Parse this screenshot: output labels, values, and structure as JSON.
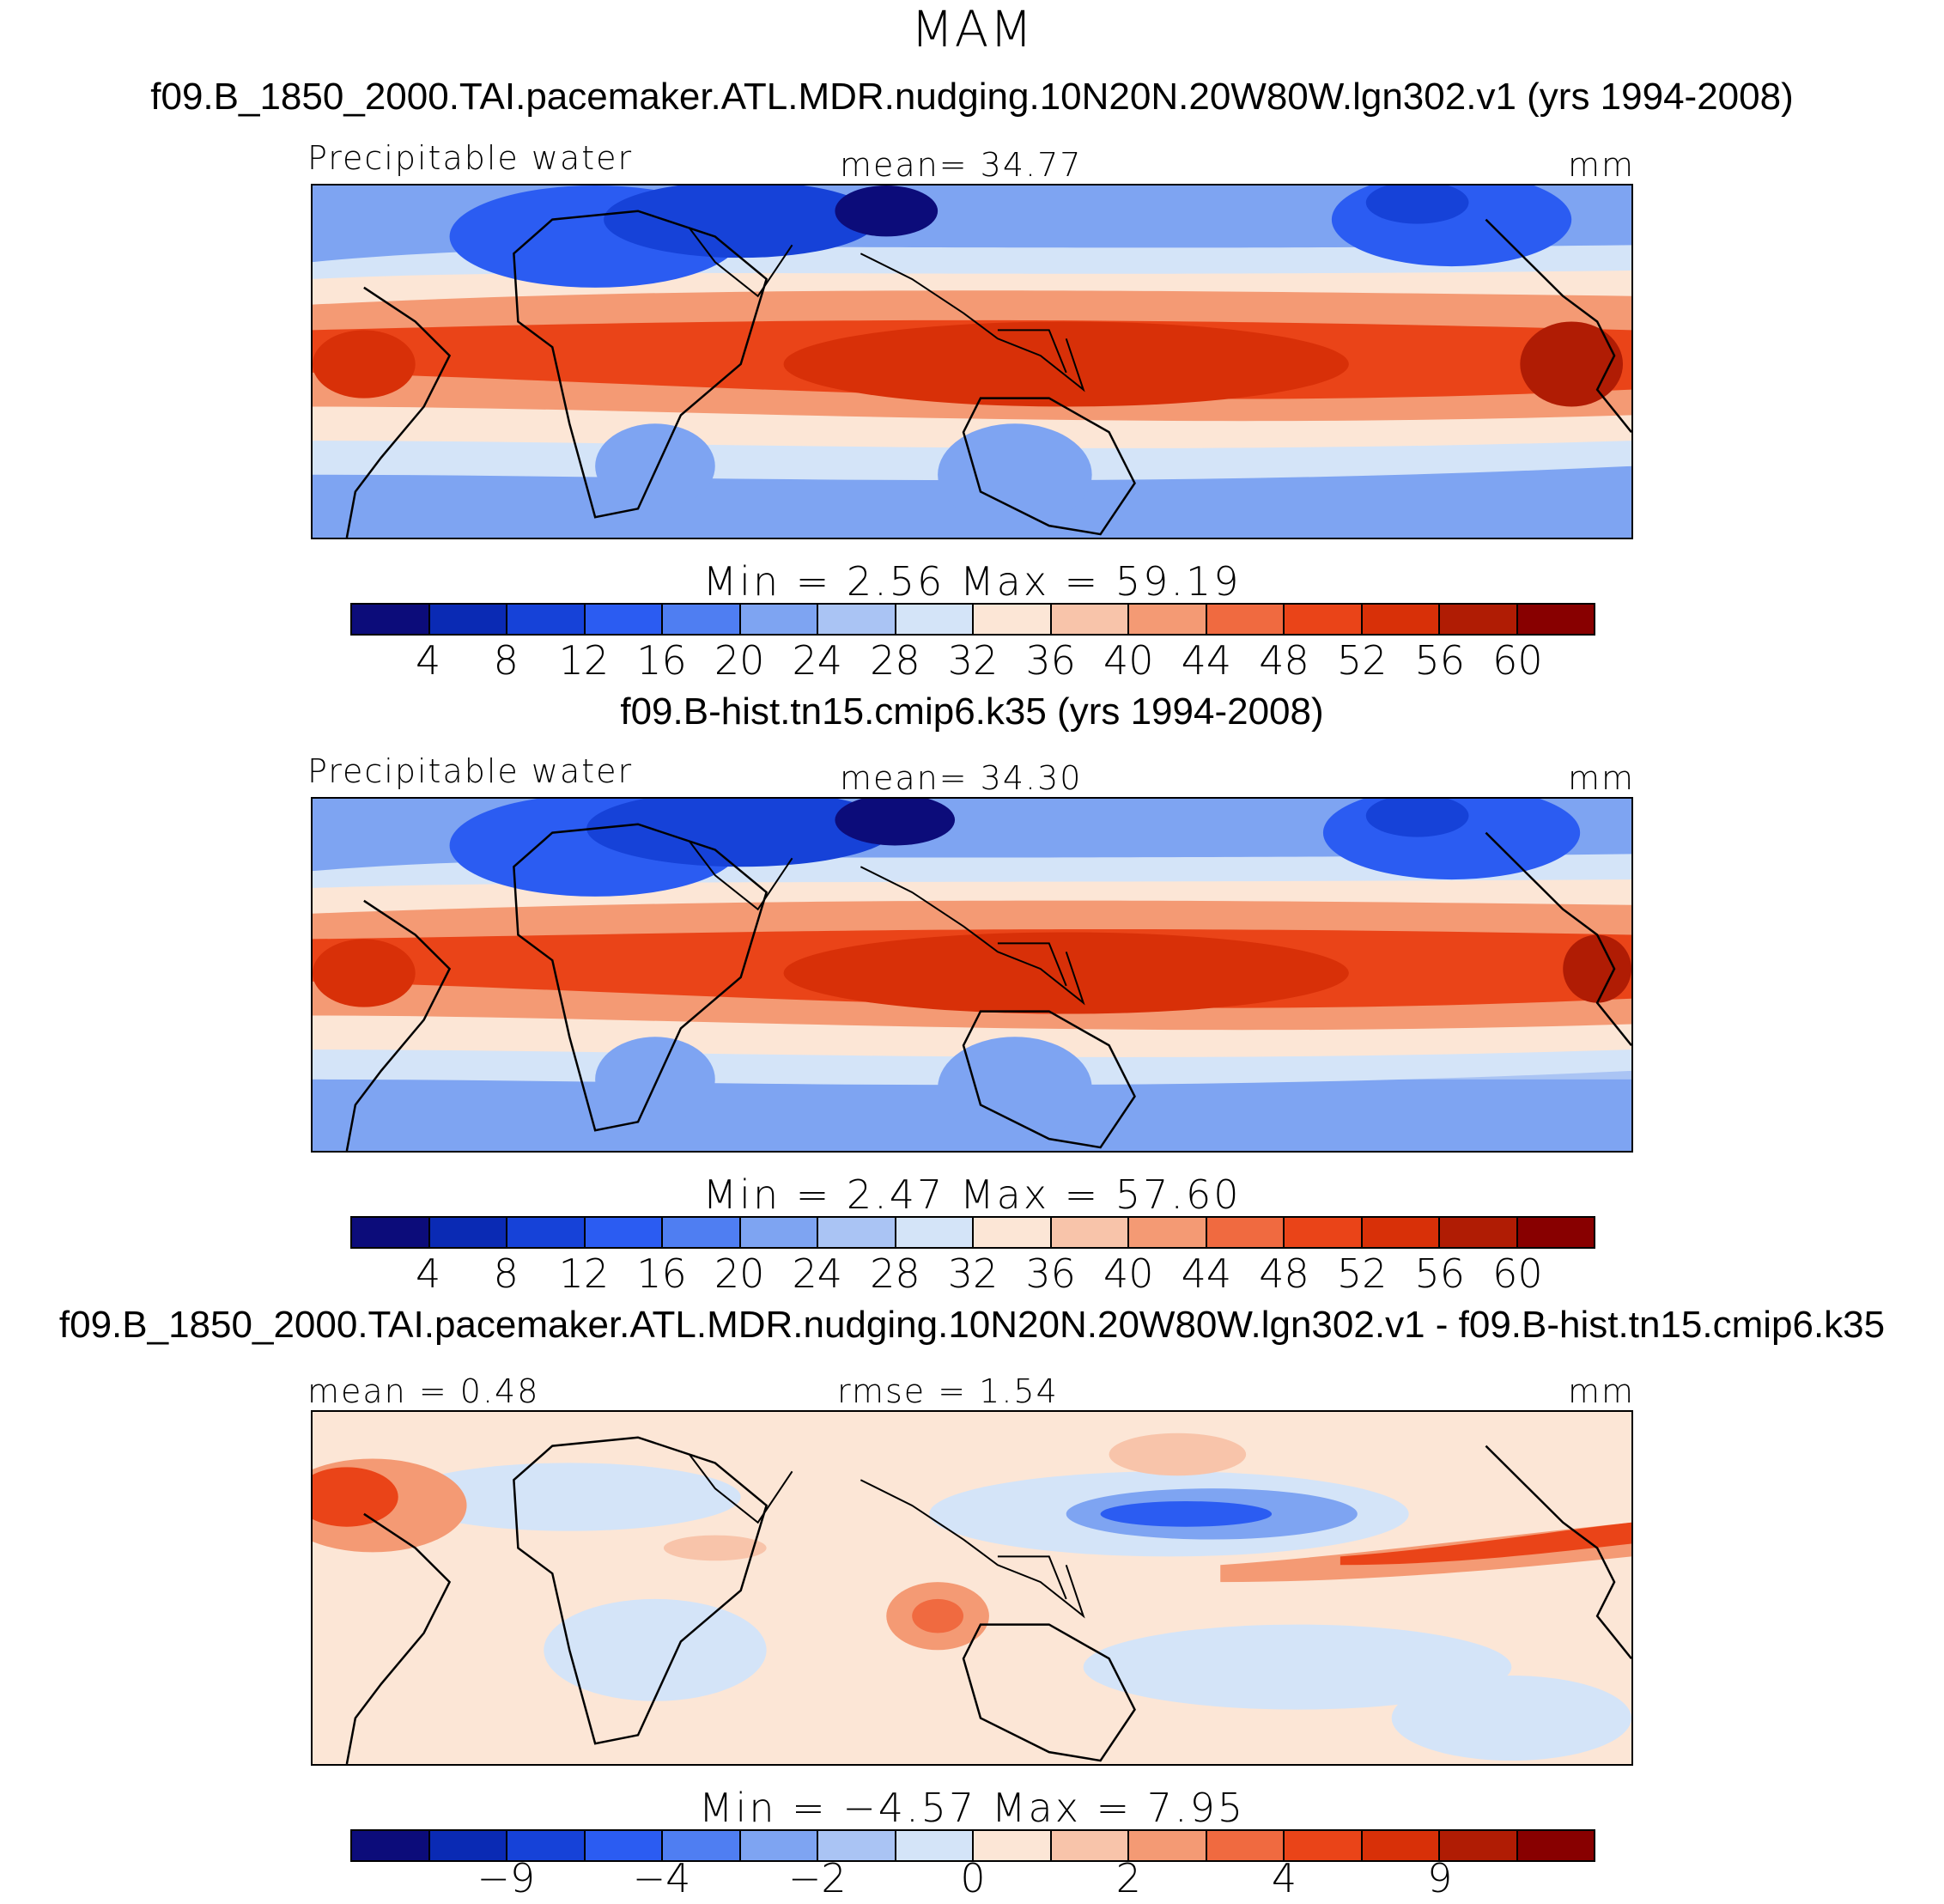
{
  "season": "MAM",
  "units": "mm",
  "colors": [
    "#0c0c7a",
    "#0a2ab4",
    "#1642d8",
    "#2b5cf2",
    "#4f7ef2",
    "#7ea4f2",
    "#aac4f4",
    "#d4e4f8",
    "#fce6d6",
    "#f8c4aa",
    "#f49a74",
    "#f06a40",
    "#ea4418",
    "#d83008",
    "#b01c04",
    "#880000"
  ],
  "panel1": {
    "title": "f09.B_1850_2000.TAI.pacemaker.ATL.MDR.nudging.10N20N.20W80W.lgn302.v1 (yrs 1994-2008)",
    "variable": "Precipitable water",
    "mean_text": "mean=   34.77",
    "units": "mm",
    "minmax": "Min =    2.56  Max =   59.19",
    "ticks": [
      "4",
      "8",
      "12",
      "16",
      "20",
      "24",
      "28",
      "32",
      "36",
      "40",
      "44",
      "48",
      "52",
      "56",
      "60"
    ]
  },
  "panel2": {
    "title": "f09.B-hist.tn15.cmip6.k35 (yrs 1994-2008)",
    "variable": "Precipitable water",
    "mean_text": "mean=   34.30",
    "units": "mm",
    "minmax": "Min =    2.47  Max =   57.60",
    "ticks": [
      "4",
      "8",
      "12",
      "16",
      "20",
      "24",
      "28",
      "32",
      "36",
      "40",
      "44",
      "48",
      "52",
      "56",
      "60"
    ]
  },
  "panel3": {
    "title": "f09.B_1850_2000.TAI.pacemaker.ATL.MDR.nudging.10N20N.20W80W.lgn302.v1 - f09.B-hist.tn15.cmip6.k35",
    "mean_text": "mean =    0.48",
    "rmse_text": "rmse =    1.54",
    "units": "mm",
    "minmax": "Min =  −4.57  Max =    7.95",
    "ticks": [
      "−9",
      "",
      "−4",
      "",
      "−2",
      "",
      "0",
      "",
      "2",
      "",
      "4",
      "",
      "9",
      "",
      "",
      ""
    ]
  }
}
